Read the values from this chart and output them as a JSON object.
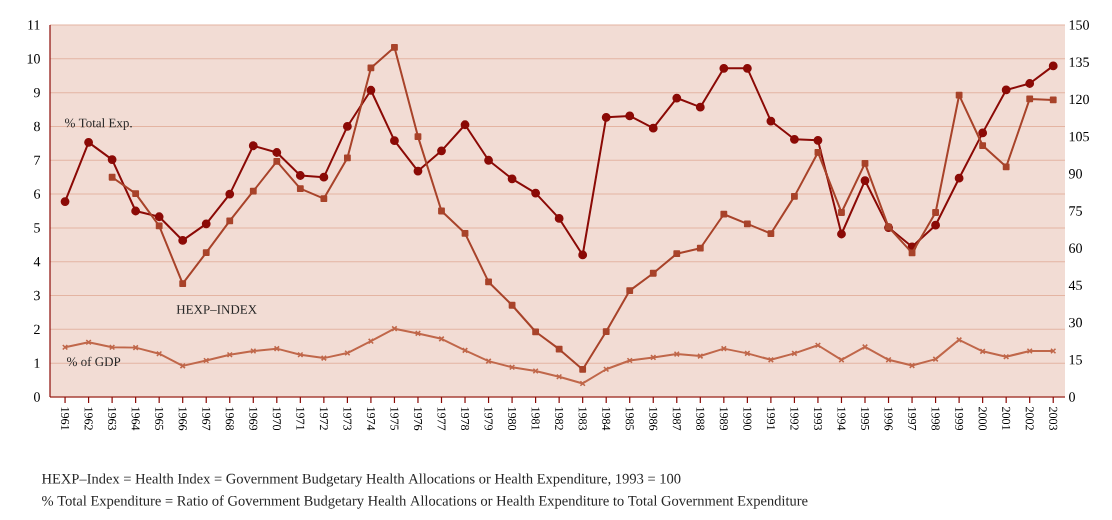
{
  "chart_data": {
    "type": "line",
    "categories": [
      "1961",
      "1962",
      "1963",
      "1964",
      "1965",
      "1966",
      "1967",
      "1968",
      "1969",
      "1970",
      "1971",
      "1972",
      "1973",
      "1974",
      "1975",
      "1976",
      "1977",
      "1978",
      "1979",
      "1980",
      "1981",
      "1982",
      "1983",
      "1984",
      "1985",
      "1986",
      "1987",
      "1988",
      "1989",
      "1990",
      "1991",
      "1992",
      "1993",
      "1994",
      "1995",
      "1996",
      "1997",
      "1998",
      "1999",
      "2000",
      "2001",
      "2002",
      "2003"
    ],
    "series": [
      {
        "name": "% Total Exp.",
        "color": "#8b0a06",
        "marker": "circle",
        "values": [
          5.78,
          7.53,
          7.02,
          5.5,
          5.33,
          4.63,
          5.12,
          6.0,
          7.43,
          7.23,
          6.55,
          6.5,
          8.0,
          9.07,
          7.58,
          6.68,
          7.28,
          8.05,
          7.0,
          6.45,
          6.03,
          5.28,
          4.2,
          8.27,
          8.31,
          7.95,
          8.84,
          8.57,
          9.72,
          9.72,
          8.16,
          7.62,
          7.59,
          4.82,
          6.4,
          5.01,
          4.44,
          5.08,
          6.47,
          7.81,
          9.08,
          9.27,
          9.79
        ]
      },
      {
        "name": "HEXP–INDEX",
        "color": "#a8432a",
        "marker": "square",
        "axis": "y2",
        "values": [
          null,
          null,
          88.6,
          82,
          69,
          45.7,
          58.2,
          71,
          83,
          95,
          84,
          80,
          96.4,
          132.7,
          141,
          105,
          75,
          66,
          46.4,
          37,
          26.3,
          19.3,
          11.1,
          26.4,
          42.9,
          49.9,
          57.8,
          60,
          73.7,
          69.8,
          65.9,
          80.9,
          98.6,
          74.4,
          94.2,
          68.5,
          58.1,
          74.4,
          121.7,
          101.4,
          92.8,
          120.2,
          119.8
        ]
      },
      {
        "name": "% of GDP",
        "color": "#c0674a",
        "marker": "cross",
        "values": [
          1.47,
          1.62,
          1.47,
          1.46,
          1.28,
          0.92,
          1.08,
          1.25,
          1.36,
          1.43,
          1.25,
          1.15,
          1.3,
          1.65,
          2.02,
          1.88,
          1.72,
          1.38,
          1.06,
          0.88,
          0.77,
          0.6,
          0.4,
          0.82,
          1.08,
          1.17,
          1.27,
          1.21,
          1.43,
          1.29,
          1.1,
          1.29,
          1.53,
          1.1,
          1.48,
          1.1,
          0.93,
          1.12,
          1.69,
          1.35,
          1.19,
          1.36,
          1.36
        ]
      }
    ],
    "ylim": [
      0,
      11
    ],
    "yticks": [
      0,
      1,
      2,
      3,
      4,
      5,
      6,
      7,
      8,
      9,
      10,
      11
    ],
    "y2lim": [
      0,
      150
    ],
    "y2ticks": [
      0,
      15,
      30,
      45,
      60,
      75,
      90,
      105,
      120,
      135,
      150
    ],
    "grid": "y",
    "annotations": [
      "HEXP–Index = Health Index = Government Budgetary Health Allocations or Health Expenditure, 1993 = 100",
      "% Total Expenditure = Ratio of Government Budgetary Health Allocations or Health Expenditure to Total Government Expenditure"
    ]
  }
}
